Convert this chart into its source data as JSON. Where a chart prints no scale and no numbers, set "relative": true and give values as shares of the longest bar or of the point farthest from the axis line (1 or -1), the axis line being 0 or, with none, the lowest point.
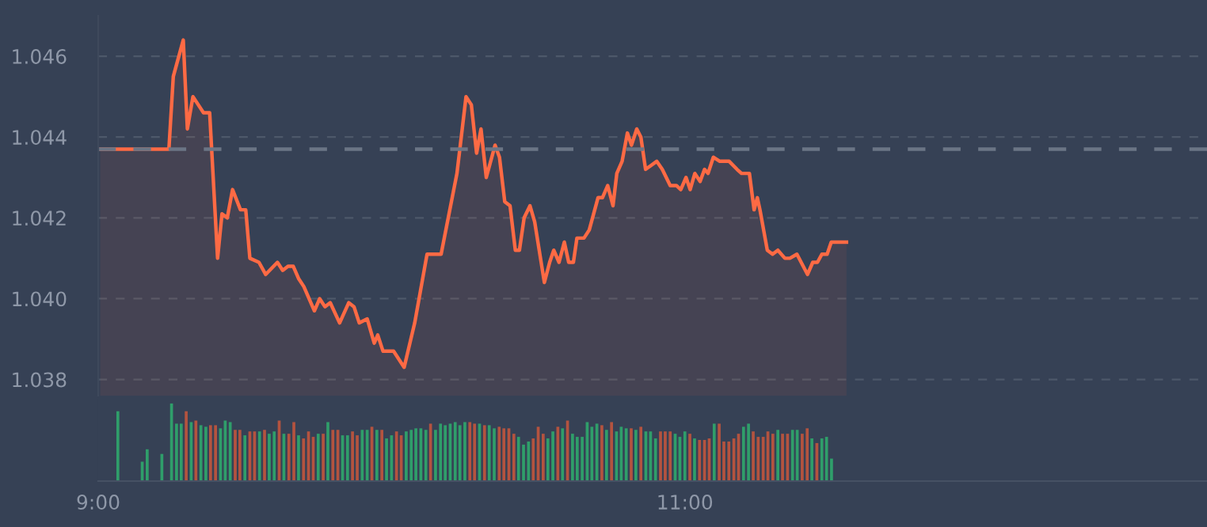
{
  "chart_data": [
    {
      "type": "area",
      "xlim": [
        9,
        12.78
      ],
      "ylim": [
        1.0376,
        1.047
      ],
      "yticks": [
        1.038,
        {
          "value": 1.04,
          "label": "1.040"
        },
        1.042,
        1.044,
        1.046
      ],
      "tick_labels": "y",
      "grid": "y",
      "ref_lines": [
        {
          "axis": "y",
          "value": 1.0437,
          "color": "#6b7585",
          "line_style": "dashed"
        }
      ],
      "series": [
        {
          "color": "#fe6a44",
          "x": [
            9.007,
            9.241,
            9.256,
            9.29,
            9.304,
            9.323,
            9.359,
            9.38,
            9.407,
            9.422,
            9.44,
            9.458,
            9.485,
            9.503,
            9.517,
            9.548,
            9.571,
            9.611,
            9.629,
            9.647,
            9.665,
            9.683,
            9.701,
            9.737,
            9.755,
            9.773,
            9.791,
            9.823,
            9.854,
            9.872,
            9.89,
            9.917,
            9.941,
            9.953,
            9.971,
            10.007,
            10.043,
            10.079,
            10.121,
            10.169,
            10.223,
            10.254,
            10.272,
            10.29,
            10.305,
            10.323,
            10.353,
            10.368,
            10.386,
            10.404,
            10.422,
            10.436,
            10.452,
            10.472,
            10.488,
            10.521,
            10.539,
            10.553,
            10.571,
            10.589,
            10.604,
            10.62,
            10.632,
            10.656,
            10.674,
            10.704,
            10.719,
            10.737,
            10.755,
            10.768,
            10.786,
            10.804,
            10.818,
            10.836,
            10.85,
            10.866,
            10.885,
            10.904,
            10.923,
            10.95,
            10.971,
            10.986,
            11.004,
            11.018,
            11.034,
            11.052,
            11.067,
            11.079,
            11.097,
            11.119,
            11.151,
            11.178,
            11.193,
            11.22,
            11.236,
            11.247,
            11.256,
            11.281,
            11.299,
            11.317,
            11.341,
            11.358,
            11.382,
            11.418,
            11.436,
            11.452,
            11.467,
            11.485,
            11.499,
            11.521,
            11.551
          ],
          "values": [
            1.0437,
            1.0437,
            1.0455,
            1.0464,
            1.0442,
            1.045,
            1.0446,
            1.0446,
            1.041,
            1.0421,
            1.042,
            1.0427,
            1.0422,
            1.0422,
            1.041,
            1.0409,
            1.0406,
            1.0409,
            1.0407,
            1.0408,
            1.0408,
            1.0405,
            1.0403,
            1.0397,
            1.04,
            1.0398,
            1.0399,
            1.0394,
            1.0399,
            1.0398,
            1.0394,
            1.0395,
            1.0389,
            1.0391,
            1.0387,
            1.0387,
            1.0383,
            1.0394,
            1.0411,
            1.0411,
            1.0431,
            1.045,
            1.0448,
            1.0436,
            1.0442,
            1.043,
            1.0438,
            1.0435,
            1.0424,
            1.0423,
            1.0412,
            1.0412,
            1.042,
            1.0423,
            1.0419,
            1.0404,
            1.0409,
            1.0412,
            1.0409,
            1.0414,
            1.0409,
            1.0409,
            1.0415,
            1.0415,
            1.0417,
            1.0425,
            1.0425,
            1.0428,
            1.0423,
            1.0431,
            1.0434,
            1.0441,
            1.0438,
            1.0442,
            1.044,
            1.0432,
            1.0433,
            1.0434,
            1.0432,
            1.0428,
            1.0428,
            1.0427,
            1.043,
            1.0427,
            1.0431,
            1.0429,
            1.0432,
            1.0431,
            1.0435,
            1.0434,
            1.0434,
            1.0432,
            1.0431,
            1.0431,
            1.0422,
            1.0425,
            1.0422,
            1.0412,
            1.0411,
            1.0412,
            1.041,
            1.041,
            1.0411,
            1.0406,
            1.0409,
            1.0409,
            1.0411,
            1.0411,
            1.0414,
            1.0414,
            1.0414
          ]
        }
      ]
    },
    {
      "type": "bar",
      "relative": true,
      "xlim": [
        9,
        12.78
      ],
      "xticks": [
        {
          "value": 9,
          "label": "9:00"
        },
        {
          "value": 11,
          "label": "11:00"
        }
      ],
      "tick_labels": "x",
      "x": [
        9.067,
        9.15,
        9.167,
        9.217,
        9.25,
        9.267,
        9.283,
        9.3,
        9.317,
        9.333,
        9.35,
        9.367,
        9.383,
        9.4,
        9.417,
        9.433,
        9.45,
        9.467,
        9.483,
        9.5,
        9.517,
        9.533,
        9.55,
        9.567,
        9.583,
        9.6,
        9.617,
        9.633,
        9.65,
        9.667,
        9.683,
        9.7,
        9.717,
        9.733,
        9.75,
        9.767,
        9.783,
        9.8,
        9.817,
        9.833,
        9.85,
        9.867,
        9.883,
        9.9,
        9.917,
        9.933,
        9.95,
        9.967,
        9.983,
        10.0,
        10.017,
        10.033,
        10.05,
        10.067,
        10.083,
        10.1,
        10.117,
        10.133,
        10.15,
        10.167,
        10.183,
        10.2,
        10.217,
        10.233,
        10.25,
        10.267,
        10.283,
        10.3,
        10.317,
        10.333,
        10.35,
        10.367,
        10.383,
        10.4,
        10.417,
        10.433,
        10.45,
        10.467,
        10.483,
        10.5,
        10.517,
        10.533,
        10.55,
        10.567,
        10.583,
        10.6,
        10.617,
        10.633,
        10.65,
        10.667,
        10.683,
        10.7,
        10.717,
        10.733,
        10.75,
        10.767,
        10.783,
        10.8,
        10.817,
        10.833,
        10.85,
        10.867,
        10.883,
        10.9,
        10.917,
        10.933,
        10.95,
        10.967,
        10.983,
        11.0,
        11.017,
        11.033,
        11.05,
        11.067,
        11.083,
        11.1,
        11.117,
        11.133,
        11.15,
        11.167,
        11.183,
        11.2,
        11.217,
        11.233,
        11.25,
        11.267,
        11.283,
        11.3,
        11.317,
        11.333,
        11.35,
        11.367,
        11.383,
        11.4,
        11.417,
        11.433,
        11.45,
        11.467,
        11.483,
        11.5
      ],
      "values": [
        0.9,
        0.25,
        0.41,
        0.35,
        1.0,
        0.74,
        0.74,
        0.9,
        0.76,
        0.78,
        0.72,
        0.7,
        0.72,
        0.72,
        0.68,
        0.78,
        0.76,
        0.66,
        0.66,
        0.59,
        0.64,
        0.64,
        0.64,
        0.66,
        0.61,
        0.64,
        0.78,
        0.61,
        0.61,
        0.76,
        0.59,
        0.55,
        0.64,
        0.57,
        0.61,
        0.61,
        0.76,
        0.66,
        0.66,
        0.59,
        0.59,
        0.64,
        0.59,
        0.66,
        0.66,
        0.7,
        0.66,
        0.66,
        0.55,
        0.59,
        0.64,
        0.59,
        0.64,
        0.66,
        0.68,
        0.68,
        0.66,
        0.74,
        0.66,
        0.74,
        0.72,
        0.74,
        0.76,
        0.72,
        0.76,
        0.76,
        0.74,
        0.74,
        0.72,
        0.72,
        0.68,
        0.7,
        0.68,
        0.68,
        0.61,
        0.57,
        0.47,
        0.51,
        0.55,
        0.7,
        0.61,
        0.55,
        0.64,
        0.7,
        0.68,
        0.78,
        0.61,
        0.57,
        0.57,
        0.76,
        0.7,
        0.74,
        0.72,
        0.66,
        0.76,
        0.64,
        0.7,
        0.68,
        0.68,
        0.66,
        0.7,
        0.64,
        0.64,
        0.55,
        0.64,
        0.64,
        0.64,
        0.61,
        0.57,
        0.64,
        0.61,
        0.55,
        0.53,
        0.53,
        0.55,
        0.74,
        0.74,
        0.51,
        0.51,
        0.55,
        0.61,
        0.7,
        0.74,
        0.64,
        0.57,
        0.57,
        0.64,
        0.61,
        0.66,
        0.61,
        0.61,
        0.66,
        0.66,
        0.61,
        0.68,
        0.55,
        0.49,
        0.55,
        0.57,
        0.29
      ],
      "colors": [
        "#2f9e6a",
        "#2f9e6a",
        "#2f9e6a",
        "#2f9e6a",
        "#2f9e6a",
        "#2f9e6a",
        "#2f9e6a",
        "#b4533f",
        "#2f9e6a",
        "#b4533f",
        "#2f9e6a",
        "#2f9e6a",
        "#b4533f",
        "#b4533f",
        "#2f9e6a",
        "#2f9e6a",
        "#2f9e6a",
        "#b4533f",
        "#b4533f",
        "#2f9e6a",
        "#b4533f",
        "#b4533f",
        "#2f9e6a",
        "#b4533f",
        "#2f9e6a",
        "#2f9e6a",
        "#b4533f",
        "#2f9e6a",
        "#b4533f",
        "#b4533f",
        "#2f9e6a",
        "#b4533f",
        "#b4533f",
        "#b4533f",
        "#2f9e6a",
        "#b4533f",
        "#2f9e6a",
        "#b4533f",
        "#b4533f",
        "#2f9e6a",
        "#2f9e6a",
        "#b4533f",
        "#b4533f",
        "#2f9e6a",
        "#2f9e6a",
        "#b4533f",
        "#2f9e6a",
        "#b4533f",
        "#2f9e6a",
        "#2f9e6a",
        "#b4533f",
        "#b4533f",
        "#2f9e6a",
        "#2f9e6a",
        "#2f9e6a",
        "#2f9e6a",
        "#2f9e6a",
        "#b4533f",
        "#2f9e6a",
        "#2f9e6a",
        "#2f9e6a",
        "#2f9e6a",
        "#2f9e6a",
        "#2f9e6a",
        "#2f9e6a",
        "#b4533f",
        "#b4533f",
        "#2f9e6a",
        "#b4533f",
        "#2f9e6a",
        "#2f9e6a",
        "#b4533f",
        "#b4533f",
        "#b4533f",
        "#b4533f",
        "#2f9e6a",
        "#2f9e6a",
        "#2f9e6a",
        "#b4533f",
        "#b4533f",
        "#b4533f",
        "#2f9e6a",
        "#2f9e6a",
        "#b4533f",
        "#2f9e6a",
        "#b4533f",
        "#2f9e6a",
        "#2f9e6a",
        "#2f9e6a",
        "#2f9e6a",
        "#2f9e6a",
        "#2f9e6a",
        "#b4533f",
        "#2f9e6a",
        "#b4533f",
        "#2f9e6a",
        "#2f9e6a",
        "#2f9e6a",
        "#b4533f",
        "#2f9e6a",
        "#b4533f",
        "#2f9e6a",
        "#2f9e6a",
        "#2f9e6a",
        "#b4533f",
        "#b4533f",
        "#b4533f",
        "#2f9e6a",
        "#2f9e6a",
        "#2f9e6a",
        "#b4533f",
        "#2f9e6a",
        "#b4533f",
        "#b4533f",
        "#b4533f",
        "#2f9e6a",
        "#b4533f",
        "#b4533f",
        "#b4533f",
        "#b4533f",
        "#b4533f",
        "#2f9e6a",
        "#2f9e6a",
        "#b4533f",
        "#b4533f",
        "#b4533f",
        "#b4533f",
        "#b4533f",
        "#2f9e6a",
        "#b4533f",
        "#b4533f",
        "#2f9e6a",
        "#2f9e6a",
        "#b4533f",
        "#b4533f",
        "#2f9e6a",
        "#b4533f",
        "#2f9e6a",
        "#2f9e6a",
        "#2f9e6a"
      ]
    }
  ]
}
